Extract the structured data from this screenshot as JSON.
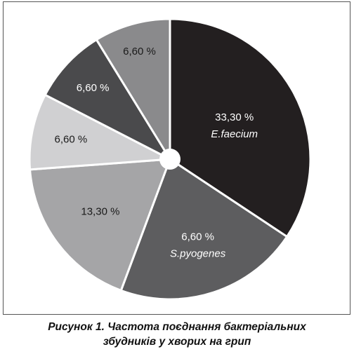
{
  "chart_data": {
    "type": "pie",
    "slices": [
      {
        "value_label": "33,30 %",
        "name": "E.faecium",
        "value": 33.3,
        "color": "#231f20",
        "text_color": "#ffffff"
      },
      {
        "value_label": "6,60 %",
        "name": "S.pyogenes",
        "value": 6.6,
        "color": "#5d5d5f",
        "text_color": "#ffffff",
        "span_value": 20.7
      },
      {
        "value_label": "13,30 %",
        "name": "",
        "value": 13.3,
        "color": "#a5a5a7",
        "text_color": "#1a1a1a",
        "span_value": 17.6
      },
      {
        "value_label": "6,60 %",
        "name": "",
        "value": 6.6,
        "color": "#d0d0d2",
        "text_color": "#1a1a1a",
        "span_value": 8.5
      },
      {
        "value_label": "6,60 %",
        "name": "",
        "value": 6.6,
        "color": "#4a4a4c",
        "text_color": "#ffffff",
        "span_value": 8.4
      },
      {
        "value_label": "6,60 %",
        "name": "",
        "value": 6.6,
        "color": "#8a8a8c",
        "text_color": "#1a1a1a",
        "span_value": 8.5
      }
    ]
  },
  "caption": {
    "line1": "Рисунок 1.  Частота поєднання бактеріальних",
    "line2": "збудників у хворих на грип"
  }
}
